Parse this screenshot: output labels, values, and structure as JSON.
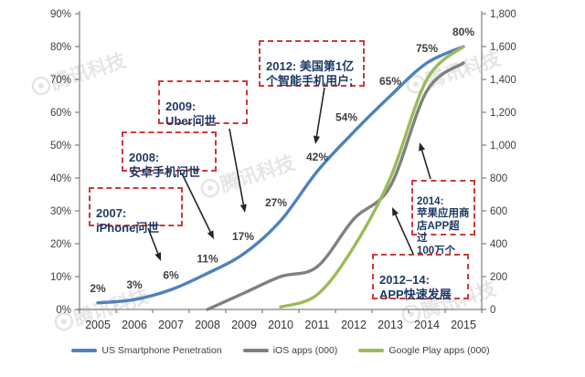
{
  "watermark": {
    "text": "腾讯科技"
  },
  "chart_data": {
    "type": "line",
    "x": [
      "2005",
      "2006",
      "2007",
      "2008",
      "2009",
      "2010",
      "2011",
      "2012",
      "2013",
      "2014",
      "2015"
    ],
    "series": [
      {
        "name": "US Smartphone Penetration",
        "axis": "left",
        "color": "#4f81bd",
        "values": [
          2,
          3,
          6,
          11,
          17,
          27,
          42,
          54,
          65,
          75,
          80
        ],
        "point_labels": [
          "2%",
          "3%",
          "6%",
          "11%",
          "17%",
          "27%",
          "42%",
          "54%",
          "65%",
          "75%",
          "80%"
        ]
      },
      {
        "name": "iOS apps (000)",
        "axis": "right",
        "color": "#808080",
        "values": [
          null,
          null,
          null,
          0,
          100,
          200,
          260,
          550,
          750,
          1330,
          1500
        ],
        "point_labels": null
      },
      {
        "name": "Google Play apps (000)",
        "axis": "right",
        "color": "#9bbb59",
        "values": [
          null,
          null,
          null,
          null,
          null,
          15,
          90,
          380,
          800,
          1400,
          1600
        ],
        "point_labels": null
      }
    ],
    "left_axis": {
      "ticks": [
        "0%",
        "10%",
        "20%",
        "30%",
        "40%",
        "50%",
        "60%",
        "70%",
        "80%",
        "90%"
      ],
      "min": 0,
      "max": 90
    },
    "right_axis": {
      "ticks": [
        "0",
        "200",
        "400",
        "600",
        "800",
        "1,000",
        "1,200",
        "1,400",
        "1,600",
        "1,800"
      ],
      "min": 0,
      "max": 1800
    },
    "title": "",
    "grid": false,
    "legend_position": "bottom"
  },
  "annotations": [
    {
      "id": "2007",
      "text": "2007:\niPhone问世"
    },
    {
      "id": "2008",
      "text": "2008:\n安卓手机问世"
    },
    {
      "id": "2009",
      "text": "2009:\nUber问世"
    },
    {
      "id": "2012",
      "text": "2012: 美国第1亿\n个智能手机用户;"
    },
    {
      "id": "2014",
      "text": "2014:\n苹果应用商\n店APP超过\n100万个"
    },
    {
      "id": "2012-14",
      "text": "2012–14:\nAPP快速发展"
    }
  ],
  "colors": {
    "annotation_text": "#1f3a66",
    "annotation_border": "#cf3a3a",
    "axis": "#808080",
    "tick_label": "#3f3f3f",
    "data_label": "#404040",
    "arrow": "#262626",
    "watermark": "#cfcfcf"
  }
}
